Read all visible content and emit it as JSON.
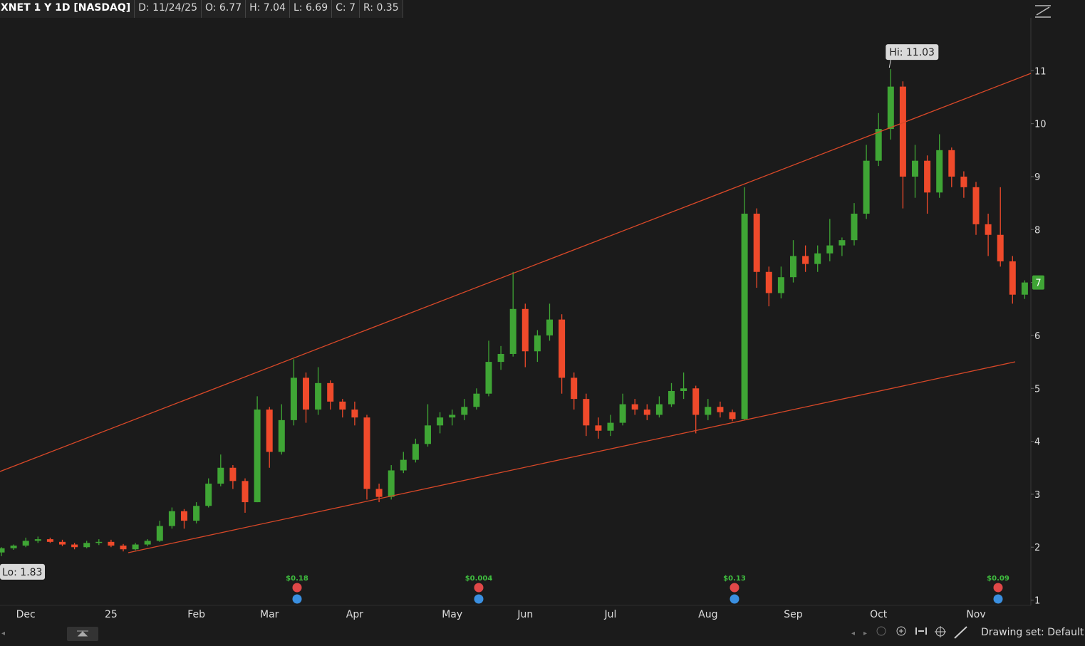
{
  "chart_data": {
    "type": "candlestick",
    "header": {
      "symbol": "XNET 1 Y 1D [NASDAQ]",
      "date": "D: 11/24/25",
      "open": "O: 6.77",
      "high": "H: 7.04",
      "low": "L: 6.69",
      "close": "C: 7",
      "range": "R: 0.35"
    },
    "hi_label": "Hi: 11.03",
    "lo_label": "Lo: 1.83",
    "last_price": 7,
    "up_color": "#3fa535",
    "down_color": "#ef4a2b",
    "categories": [
      null,
      null,
      "Dec",
      null,
      null,
      null,
      null,
      null,
      null,
      "25",
      null,
      null,
      null,
      null,
      null,
      null,
      "Feb",
      null,
      null,
      null,
      null,
      null,
      "Mar",
      null,
      null,
      null,
      null,
      null,
      null,
      "Apr",
      null,
      null,
      null,
      null,
      null,
      null,
      null,
      "May",
      null,
      null,
      null,
      null,
      null,
      "Jun",
      null,
      null,
      null,
      null,
      null,
      null,
      "Jul",
      null,
      null,
      null,
      null,
      null,
      null,
      null,
      "Aug",
      null,
      null,
      null,
      null,
      null,
      null,
      "Sep",
      null,
      null,
      null,
      null,
      null,
      null,
      "Oct",
      null,
      null,
      null,
      null,
      null,
      null,
      null,
      "Nov",
      null,
      null,
      null,
      null
    ],
    "ohlc": [
      [
        1.9,
        2.0,
        1.83,
        1.98
      ],
      [
        1.98,
        2.05,
        1.95,
        2.03
      ],
      [
        2.03,
        2.18,
        2.0,
        2.12
      ],
      [
        2.12,
        2.2,
        2.08,
        2.15
      ],
      [
        2.15,
        2.18,
        2.08,
        2.1
      ],
      [
        2.1,
        2.14,
        2.02,
        2.05
      ],
      [
        2.05,
        2.08,
        1.96,
        2.0
      ],
      [
        2.0,
        2.12,
        1.98,
        2.08
      ],
      [
        2.08,
        2.15,
        2.04,
        2.1
      ],
      [
        2.1,
        2.14,
        2.0,
        2.03
      ],
      [
        2.03,
        2.06,
        1.92,
        1.96
      ],
      [
        1.96,
        2.08,
        1.94,
        2.05
      ],
      [
        2.05,
        2.15,
        2.02,
        2.12
      ],
      [
        2.12,
        2.5,
        2.1,
        2.4
      ],
      [
        2.4,
        2.75,
        2.35,
        2.68
      ],
      [
        2.68,
        2.72,
        2.35,
        2.5
      ],
      [
        2.5,
        2.85,
        2.45,
        2.78
      ],
      [
        2.78,
        3.3,
        2.75,
        3.2
      ],
      [
        3.2,
        3.75,
        3.15,
        3.5
      ],
      [
        3.5,
        3.55,
        3.1,
        3.25
      ],
      [
        3.25,
        3.3,
        2.65,
        2.85
      ],
      [
        2.85,
        4.85,
        2.85,
        4.6
      ],
      [
        4.6,
        4.65,
        3.5,
        3.8
      ],
      [
        3.8,
        4.7,
        3.75,
        4.4
      ],
      [
        4.4,
        5.55,
        4.3,
        5.2
      ],
      [
        5.2,
        5.3,
        4.35,
        4.6
      ],
      [
        4.6,
        5.4,
        4.5,
        5.1
      ],
      [
        5.1,
        5.15,
        4.6,
        4.75
      ],
      [
        4.75,
        4.8,
        4.45,
        4.6
      ],
      [
        4.6,
        4.75,
        4.3,
        4.45
      ],
      [
        4.45,
        4.5,
        2.9,
        3.1
      ],
      [
        3.1,
        3.2,
        2.85,
        2.95
      ],
      [
        2.95,
        3.55,
        2.9,
        3.45
      ],
      [
        3.45,
        3.8,
        3.4,
        3.65
      ],
      [
        3.65,
        4.05,
        3.6,
        3.95
      ],
      [
        3.95,
        4.7,
        3.9,
        4.3
      ],
      [
        4.3,
        4.55,
        4.15,
        4.45
      ],
      [
        4.45,
        4.6,
        4.3,
        4.5
      ],
      [
        4.5,
        4.8,
        4.4,
        4.65
      ],
      [
        4.65,
        5.0,
        4.6,
        4.9
      ],
      [
        4.9,
        5.9,
        4.85,
        5.5
      ],
      [
        5.5,
        5.8,
        5.35,
        5.65
      ],
      [
        5.65,
        7.2,
        5.6,
        6.5
      ],
      [
        6.5,
        6.6,
        5.4,
        5.7
      ],
      [
        5.7,
        6.1,
        5.5,
        6.0
      ],
      [
        6.0,
        6.6,
        5.9,
        6.3
      ],
      [
        6.3,
        6.4,
        4.9,
        5.2
      ],
      [
        5.2,
        5.3,
        4.6,
        4.8
      ],
      [
        4.8,
        4.9,
        4.1,
        4.3
      ],
      [
        4.3,
        4.45,
        4.05,
        4.2
      ],
      [
        4.2,
        4.5,
        4.1,
        4.35
      ],
      [
        4.35,
        4.9,
        4.3,
        4.7
      ],
      [
        4.7,
        4.8,
        4.5,
        4.6
      ],
      [
        4.6,
        4.7,
        4.4,
        4.5
      ],
      [
        4.5,
        4.85,
        4.45,
        4.7
      ],
      [
        4.7,
        5.1,
        4.65,
        4.95
      ],
      [
        4.95,
        5.3,
        4.8,
        5.0
      ],
      [
        5.0,
        5.05,
        4.15,
        4.5
      ],
      [
        4.5,
        4.8,
        4.4,
        4.65
      ],
      [
        4.65,
        4.75,
        4.45,
        4.55
      ],
      [
        4.55,
        4.6,
        4.38,
        4.42
      ],
      [
        4.42,
        8.8,
        4.4,
        8.3
      ],
      [
        8.3,
        8.4,
        6.9,
        7.2
      ],
      [
        7.2,
        7.3,
        6.55,
        6.8
      ],
      [
        6.8,
        7.3,
        6.7,
        7.1
      ],
      [
        7.1,
        7.8,
        7.0,
        7.5
      ],
      [
        7.5,
        7.7,
        7.2,
        7.35
      ],
      [
        7.35,
        7.7,
        7.2,
        7.55
      ],
      [
        7.55,
        8.2,
        7.4,
        7.7
      ],
      [
        7.7,
        7.85,
        7.5,
        7.8
      ],
      [
        7.8,
        8.5,
        7.7,
        8.3
      ],
      [
        8.3,
        9.6,
        8.2,
        9.3
      ],
      [
        9.3,
        10.2,
        9.2,
        9.9
      ],
      [
        9.9,
        11.03,
        9.7,
        10.7
      ],
      [
        10.7,
        10.8,
        8.4,
        9.0
      ],
      [
        9.0,
        9.6,
        8.6,
        9.3
      ],
      [
        9.3,
        9.4,
        8.3,
        8.7
      ],
      [
        8.7,
        9.8,
        8.6,
        9.5
      ],
      [
        9.5,
        9.55,
        8.8,
        9.0
      ],
      [
        9.0,
        9.1,
        8.6,
        8.8
      ],
      [
        8.8,
        8.9,
        7.9,
        8.1
      ],
      [
        8.1,
        8.3,
        7.5,
        7.9
      ],
      [
        7.9,
        8.8,
        7.3,
        7.4
      ],
      [
        7.4,
        7.5,
        6.6,
        6.77
      ],
      [
        6.77,
        7.04,
        6.69,
        7
      ]
    ],
    "ylim": [
      0.9,
      12.0
    ],
    "yticks": [
      1,
      2,
      3,
      4,
      5,
      6,
      7,
      8,
      9,
      10,
      11
    ],
    "events": [
      "$0.18",
      "$0.004",
      "$0.13",
      "$0.09"
    ],
    "drawing_set": "Drawing set: Default"
  }
}
